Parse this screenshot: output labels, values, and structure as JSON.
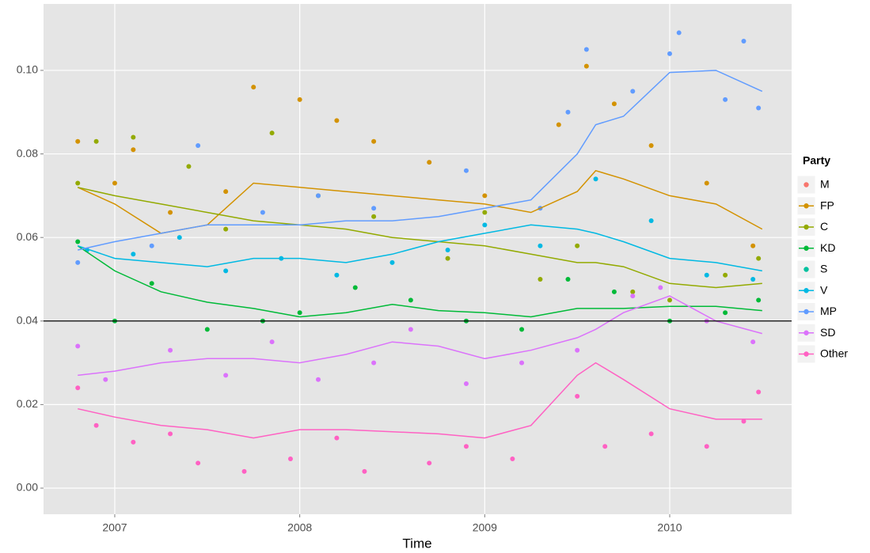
{
  "chart_data": {
    "type": "scatter",
    "x_label": "Time",
    "legend_title": "Party",
    "xlim": [
      2006.615,
      2010.659
    ],
    "xticks": [
      2007,
      2008,
      2009,
      2010
    ],
    "ylim": [
      -0.00625,
      0.1159
    ],
    "yticks": [
      {
        "value": 0,
        "label": "0.00"
      },
      {
        "value": 0.02,
        "label": "0.02"
      },
      {
        "value": 0.04,
        "label": "0.04"
      },
      {
        "value": 0.06,
        "label": "0.06"
      },
      {
        "value": 0.08,
        "label": "0.08"
      },
      {
        "value": 0.1,
        "label": "0.10"
      }
    ],
    "grid": true,
    "hline": 0.04,
    "smooth_x": [
      2006.8,
      2007,
      2007.25,
      2007.5,
      2007.75,
      2008,
      2008.25,
      2008.5,
      2008.75,
      2009,
      2009.25,
      2009.5,
      2009.6,
      2009.75,
      2010,
      2010.25,
      2010.5
    ],
    "series": [
      {
        "name": "M",
        "color": "#F8766D"
      },
      {
        "name": "FP",
        "color": "#D39200",
        "x": [
          2006.8,
          2007.0,
          2007.1,
          2007.3,
          2007.6,
          2007.75,
          2008.0,
          2008.2,
          2008.4,
          2008.7,
          2009.0,
          2009.4,
          2009.55,
          2009.7,
          2009.9,
          2010.2,
          2010.45
        ],
        "values": [
          0.083,
          0.073,
          0.081,
          0.066,
          0.071,
          0.096,
          0.093,
          0.088,
          0.083,
          0.078,
          0.07,
          0.087,
          0.101,
          0.092,
          0.082,
          0.073,
          0.058
        ],
        "smooth": [
          0.072,
          0.068,
          0.061,
          0.063,
          0.073,
          0.072,
          0.071,
          0.07,
          0.069,
          0.068,
          0.066,
          0.071,
          0.076,
          0.074,
          0.07,
          0.068,
          0.062
        ]
      },
      {
        "name": "C",
        "color": "#93AA00",
        "x": [
          2006.8,
          2006.9,
          2007.1,
          2007.4,
          2007.6,
          2007.85,
          2008.1,
          2008.4,
          2008.8,
          2009.0,
          2009.3,
          2009.5,
          2009.8,
          2010.0,
          2010.3,
          2010.48
        ],
        "values": [
          0.073,
          0.083,
          0.084,
          0.077,
          0.062,
          0.085,
          0.07,
          0.065,
          0.055,
          0.066,
          0.05,
          0.058,
          0.047,
          0.045,
          0.051,
          0.055
        ],
        "smooth": [
          0.072,
          0.07,
          0.068,
          0.066,
          0.064,
          0.063,
          0.062,
          0.06,
          0.059,
          0.058,
          0.056,
          0.054,
          0.054,
          0.053,
          0.049,
          0.048,
          0.049
        ]
      },
      {
        "name": "KD",
        "color": "#00BA38",
        "x": [
          2006.8,
          2007.0,
          2007.2,
          2007.5,
          2007.8,
          2008.0,
          2008.3,
          2008.6,
          2008.9,
          2009.2,
          2009.45,
          2009.7,
          2010.0,
          2010.3,
          2010.48
        ],
        "values": [
          0.059,
          0.04,
          0.049,
          0.038,
          0.04,
          0.042,
          0.048,
          0.045,
          0.04,
          0.038,
          0.05,
          0.047,
          0.04,
          0.042,
          0.045
        ],
        "smooth": [
          0.058,
          0.052,
          0.047,
          0.0445,
          0.043,
          0.041,
          0.042,
          0.044,
          0.0425,
          0.042,
          0.041,
          0.043,
          0.043,
          0.043,
          0.0435,
          0.0435,
          0.0425
        ]
      },
      {
        "name": "S",
        "color": "#00C19F"
      },
      {
        "name": "V",
        "color": "#00B9E3",
        "x": [
          2006.85,
          2007.1,
          2007.35,
          2007.6,
          2007.9,
          2008.2,
          2008.5,
          2008.8,
          2009.0,
          2009.3,
          2009.6,
          2009.9,
          2010.2,
          2010.45
        ],
        "values": [
          0.057,
          0.056,
          0.06,
          0.052,
          0.055,
          0.051,
          0.054,
          0.057,
          0.063,
          0.058,
          0.074,
          0.064,
          0.051,
          0.05
        ],
        "smooth": [
          0.058,
          0.055,
          0.054,
          0.053,
          0.055,
          0.055,
          0.054,
          0.056,
          0.059,
          0.061,
          0.063,
          0.062,
          0.061,
          0.059,
          0.055,
          0.054,
          0.052
        ]
      },
      {
        "name": "MP",
        "color": "#619CFF",
        "x": [
          2006.8,
          2007.2,
          2007.45,
          2007.8,
          2008.1,
          2008.4,
          2008.9,
          2009.3,
          2009.45,
          2009.55,
          2009.8,
          2010.0,
          2010.05,
          2010.3,
          2010.4,
          2010.48
        ],
        "values": [
          0.054,
          0.058,
          0.082,
          0.066,
          0.07,
          0.067,
          0.076,
          0.067,
          0.09,
          0.105,
          0.095,
          0.104,
          0.109,
          0.093,
          0.107,
          0.091
        ],
        "smooth": [
          0.057,
          0.059,
          0.061,
          0.063,
          0.063,
          0.063,
          0.064,
          0.064,
          0.065,
          0.067,
          0.069,
          0.08,
          0.087,
          0.089,
          0.0995,
          0.1,
          0.095
        ]
      },
      {
        "name": "SD",
        "color": "#DB72FB",
        "x": [
          2006.8,
          2006.95,
          2007.3,
          2007.6,
          2007.85,
          2008.1,
          2008.4,
          2008.6,
          2008.9,
          2009.2,
          2009.5,
          2009.8,
          2009.95,
          2010.2,
          2010.45
        ],
        "values": [
          0.034,
          0.026,
          0.033,
          0.027,
          0.035,
          0.026,
          0.03,
          0.038,
          0.025,
          0.03,
          0.033,
          0.046,
          0.048,
          0.04,
          0.035
        ],
        "smooth": [
          0.027,
          0.028,
          0.03,
          0.031,
          0.031,
          0.03,
          0.032,
          0.035,
          0.034,
          0.031,
          0.033,
          0.036,
          0.038,
          0.042,
          0.046,
          0.04,
          0.037
        ]
      },
      {
        "name": "Other",
        "color": "#FF61C3",
        "x": [
          2006.8,
          2006.9,
          2007.1,
          2007.3,
          2007.45,
          2007.7,
          2007.95,
          2008.2,
          2008.35,
          2008.7,
          2008.9,
          2009.15,
          2009.5,
          2009.65,
          2009.9,
          2010.2,
          2010.4,
          2010.48
        ],
        "values": [
          0.024,
          0.015,
          0.011,
          0.013,
          0.006,
          0.004,
          0.007,
          0.012,
          0.004,
          0.006,
          0.01,
          0.007,
          0.022,
          0.01,
          0.013,
          0.01,
          0.016,
          0.023
        ],
        "smooth": [
          0.019,
          0.017,
          0.015,
          0.014,
          0.012,
          0.014,
          0.014,
          0.0135,
          0.013,
          0.012,
          0.015,
          0.027,
          0.03,
          0.026,
          0.019,
          0.0165,
          0.0165
        ]
      }
    ]
  }
}
